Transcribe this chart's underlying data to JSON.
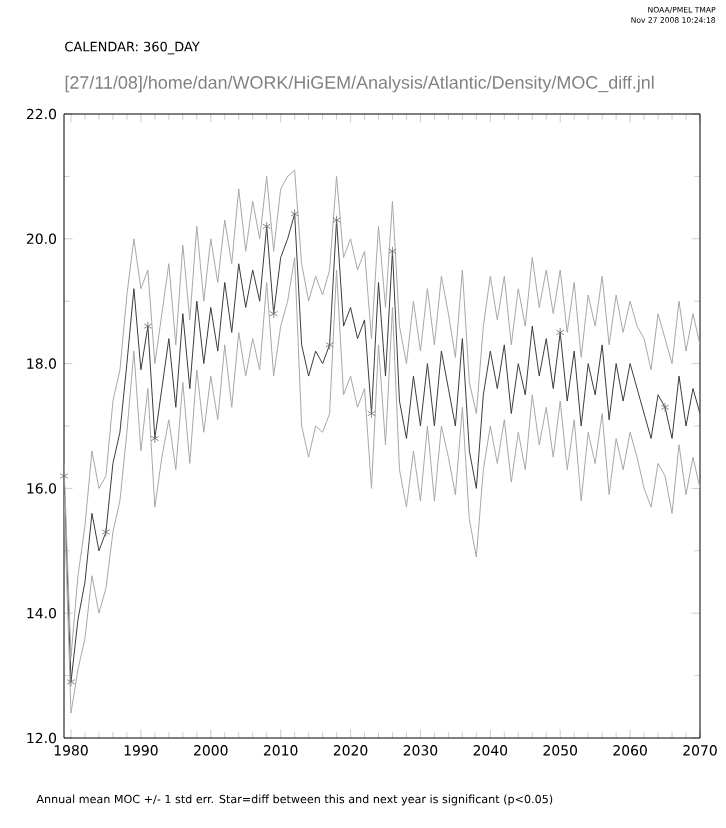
{
  "chart_data": {
    "type": "line",
    "title": "CALENDAR: 360_DAY",
    "subtitle": "[27/11/08]/home/dan/WORK/HiGEM/Analysis/Atlantic/Density/MOC_diff.jnl",
    "annotations": [
      "Annual mean MOC +/- 1 std err. Star=diff between this and next year is significant (p<0.05)",
      "NOAA/PMEL TMAP",
      "Nov 27 2008 10:24:18"
    ],
    "xlim": [
      1979,
      2070
    ],
    "xticks": [
      {
        "value": 1980,
        "label": "1980"
      },
      {
        "value": 1990,
        "label": "1990"
      },
      {
        "value": 2000,
        "label": "2000"
      },
      {
        "value": 2010,
        "label": "2010"
      },
      {
        "value": 2020,
        "label": "2020"
      },
      {
        "value": 2030,
        "label": "2030"
      },
      {
        "value": 2040,
        "label": "2040"
      },
      {
        "value": 2050,
        "label": "2050"
      },
      {
        "value": 2060,
        "label": "2060"
      },
      {
        "value": 2070,
        "label": "2070"
      }
    ],
    "ylim": [
      12,
      22
    ],
    "yticks": [
      {
        "value": 12,
        "label": "12.0"
      },
      {
        "value": 14,
        "label": "14.0"
      },
      {
        "value": 16,
        "label": "16.0"
      },
      {
        "value": 18,
        "label": "18.0"
      },
      {
        "value": 20,
        "label": "20.0"
      },
      {
        "value": 22,
        "label": "22.0"
      }
    ],
    "x": [
      1979,
      1980,
      1981,
      1982,
      1983,
      1984,
      1985,
      1986,
      1987,
      1988,
      1989,
      1990,
      1991,
      1992,
      1993,
      1994,
      1995,
      1996,
      1997,
      1998,
      1999,
      2000,
      2001,
      2002,
      2003,
      2004,
      2005,
      2006,
      2007,
      2008,
      2009,
      2010,
      2011,
      2012,
      2013,
      2014,
      2015,
      2016,
      2017,
      2018,
      2019,
      2020,
      2021,
      2022,
      2023,
      2024,
      2025,
      2026,
      2027,
      2028,
      2029,
      2030,
      2031,
      2032,
      2033,
      2034,
      2035,
      2036,
      2037,
      2038,
      2039,
      2040,
      2041,
      2042,
      2043,
      2044,
      2045,
      2046,
      2047,
      2048,
      2049,
      2050,
      2051,
      2052,
      2053,
      2054,
      2055,
      2056,
      2057,
      2058,
      2059,
      2060,
      2061,
      2062,
      2063,
      2064,
      2065,
      2066,
      2067,
      2068,
      2069,
      2070
    ],
    "series": [
      {
        "color": "#3c3c3c",
        "values": [
          16.2,
          12.9,
          13.9,
          14.5,
          15.6,
          15.0,
          15.3,
          16.4,
          16.9,
          18.0,
          19.2,
          17.9,
          18.6,
          16.8,
          17.6,
          18.4,
          17.3,
          18.8,
          17.6,
          19.0,
          18.0,
          18.9,
          18.2,
          19.3,
          18.5,
          19.6,
          18.9,
          19.5,
          19.0,
          20.2,
          18.8,
          19.7,
          20.0,
          20.4,
          18.3,
          17.8,
          18.2,
          18.0,
          18.3,
          20.3,
          18.6,
          18.9,
          18.4,
          18.7,
          17.2,
          19.3,
          17.8,
          19.8,
          17.4,
          16.8,
          17.8,
          17.0,
          18.0,
          17.0,
          18.2,
          17.6,
          17.0,
          18.4,
          16.6,
          16.0,
          17.5,
          18.2,
          17.6,
          18.3,
          17.2,
          18.0,
          17.5,
          18.6,
          17.8,
          18.4,
          17.6,
          18.5,
          17.4,
          18.2,
          17.0,
          18.0,
          17.5,
          18.3,
          17.1,
          18.0,
          17.4,
          18.0,
          17.6,
          17.2,
          16.8,
          17.5,
          17.3,
          16.8,
          17.8,
          17.0,
          17.6,
          17.2
        ]
      },
      {
        "color": "#a8a8a8",
        "values": [
          16.4,
          13.3,
          14.6,
          15.4,
          16.6,
          16.0,
          16.2,
          17.4,
          17.9,
          19.1,
          20.0,
          19.2,
          19.5,
          18.0,
          18.8,
          19.6,
          18.3,
          19.9,
          18.7,
          20.2,
          19.0,
          20.0,
          19.3,
          20.3,
          19.6,
          20.8,
          19.8,
          20.6,
          20.0,
          21.0,
          19.8,
          20.8,
          21.0,
          21.1,
          19.6,
          19.0,
          19.4,
          19.1,
          19.5,
          21.0,
          19.7,
          20.0,
          19.5,
          19.8,
          18.4,
          20.2,
          18.9,
          20.6,
          18.6,
          18.0,
          19.0,
          18.2,
          19.2,
          18.3,
          19.4,
          18.8,
          18.1,
          19.5,
          17.7,
          17.2,
          18.6,
          19.4,
          18.7,
          19.4,
          18.3,
          19.2,
          18.6,
          19.7,
          18.9,
          19.5,
          18.8,
          19.5,
          18.5,
          19.3,
          18.1,
          19.1,
          18.6,
          19.4,
          18.3,
          19.1,
          18.5,
          19.0,
          18.6,
          18.4,
          17.9,
          18.8,
          18.4,
          18.0,
          19.0,
          18.2,
          18.8,
          18.3
        ]
      },
      {
        "color": "#a8a8a8",
        "values": [
          15.9,
          12.4,
          13.1,
          13.6,
          14.6,
          14.0,
          14.4,
          15.3,
          15.8,
          16.9,
          18.2,
          16.6,
          17.6,
          15.7,
          16.5,
          17.1,
          16.3,
          17.7,
          16.4,
          17.9,
          16.9,
          17.8,
          17.1,
          18.3,
          17.3,
          18.5,
          17.8,
          18.4,
          17.9,
          19.3,
          17.8,
          18.6,
          19.0,
          19.7,
          17.0,
          16.5,
          17.0,
          16.9,
          17.2,
          19.5,
          17.5,
          17.8,
          17.3,
          17.6,
          16.0,
          18.3,
          16.7,
          18.9,
          16.3,
          15.7,
          16.6,
          15.8,
          17.0,
          15.8,
          17.0,
          16.5,
          15.9,
          17.3,
          15.5,
          14.9,
          16.3,
          17.0,
          16.4,
          17.1,
          16.1,
          16.9,
          16.3,
          17.5,
          16.7,
          17.3,
          16.5,
          17.4,
          16.3,
          17.1,
          15.8,
          16.9,
          16.4,
          17.2,
          15.9,
          16.8,
          16.3,
          16.9,
          16.5,
          16.0,
          15.7,
          16.4,
          16.2,
          15.6,
          16.7,
          15.9,
          16.5,
          16.0
        ]
      },
      {
        "type": "scatter",
        "marker": "cross",
        "color": "#6e6e6e",
        "x": [
          1979,
          1980,
          1985,
          1991,
          1992,
          2008,
          2009,
          2012,
          2017,
          2018,
          2023,
          2026,
          2050,
          2065
        ],
        "values": [
          16.2,
          12.9,
          15.3,
          18.6,
          16.8,
          20.2,
          18.8,
          20.4,
          18.3,
          20.3,
          17.2,
          19.8,
          18.5,
          17.3
        ]
      }
    ]
  }
}
